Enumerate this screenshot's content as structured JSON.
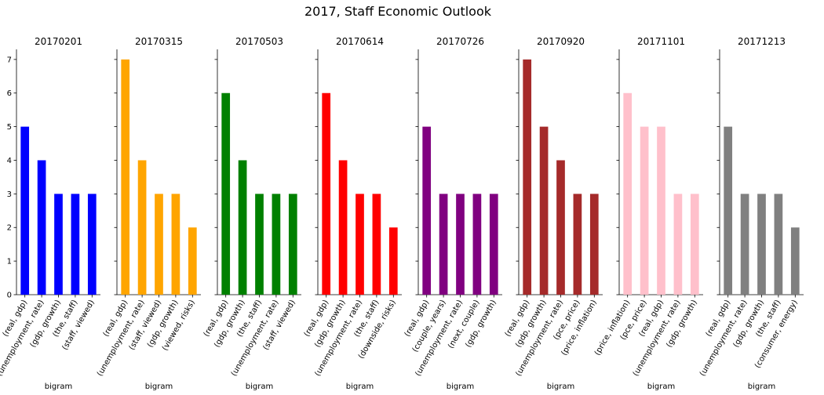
{
  "figure": {
    "title": "2017, Staff Economic Outlook"
  },
  "chart_data": [
    {
      "type": "bar",
      "title": "20170201",
      "xlabel": "bigram",
      "ylabel": "",
      "ylim": [
        0,
        7.3
      ],
      "color": "#0000ff",
      "categories": [
        "(real, gdp)",
        "(unemployment, rate)",
        "(gdp, growth)",
        "(the, staff)",
        "(staff, viewed)"
      ],
      "values": [
        5,
        4,
        3,
        3,
        3
      ]
    },
    {
      "type": "bar",
      "title": "20170315",
      "xlabel": "bigram",
      "ylabel": "",
      "ylim": [
        0,
        7.3
      ],
      "color": "#ffa500",
      "categories": [
        "(real, gdp)",
        "(unemployment, rate)",
        "(staff, viewed)",
        "(gdp, growth)",
        "(viewed, risks)"
      ],
      "values": [
        7,
        4,
        3,
        3,
        2
      ]
    },
    {
      "type": "bar",
      "title": "20170503",
      "xlabel": "bigram",
      "ylabel": "",
      "ylim": [
        0,
        7.3
      ],
      "color": "#008000",
      "categories": [
        "(real, gdp)",
        "(gdp, growth)",
        "(the, staff)",
        "(unemployment, rate)",
        "(staff, viewed)"
      ],
      "values": [
        6,
        4,
        3,
        3,
        3
      ]
    },
    {
      "type": "bar",
      "title": "20170614",
      "xlabel": "bigram",
      "ylabel": "",
      "ylim": [
        0,
        7.3
      ],
      "color": "#ff0000",
      "categories": [
        "(real, gdp)",
        "(gdp, growth)",
        "(unemployment, rate)",
        "(the, staff)",
        "(downside, risks)"
      ],
      "values": [
        6,
        4,
        3,
        3,
        2
      ]
    },
    {
      "type": "bar",
      "title": "20170726",
      "xlabel": "bigram",
      "ylabel": "",
      "ylim": [
        0,
        7.3
      ],
      "color": "#800080",
      "categories": [
        "(real, gdp)",
        "(couple, years)",
        "(unemployment, rate)",
        "(next, couple)",
        "(gdp, growth)"
      ],
      "values": [
        5,
        3,
        3,
        3,
        3
      ]
    },
    {
      "type": "bar",
      "title": "20170920",
      "xlabel": "bigram",
      "ylabel": "",
      "ylim": [
        0,
        7.3
      ],
      "color": "#a52a2a",
      "categories": [
        "(real, gdp)",
        "(gdp, growth)",
        "(unemployment, rate)",
        "(pce, price)",
        "(price, inflation)"
      ],
      "values": [
        7,
        5,
        4,
        3,
        3
      ]
    },
    {
      "type": "bar",
      "title": "20171101",
      "xlabel": "bigram",
      "ylabel": "",
      "ylim": [
        0,
        7.3
      ],
      "color": "#ffc0cb",
      "categories": [
        "(price, inflation)",
        "(pce, price)",
        "(real, gdp)",
        "(unemployment, rate)",
        "(gdp, growth)"
      ],
      "values": [
        6,
        5,
        5,
        3,
        3
      ]
    },
    {
      "type": "bar",
      "title": "20171213",
      "xlabel": "bigram",
      "ylabel": "",
      "ylim": [
        0,
        7.3
      ],
      "color": "#808080",
      "categories": [
        "(real, gdp)",
        "(unemployment, rate)",
        "(gdp, growth)",
        "(the, staff)",
        "(consumer, energy)"
      ],
      "values": [
        5,
        3,
        3,
        3,
        2
      ]
    }
  ],
  "y_ticks": [
    0,
    1,
    2,
    3,
    4,
    5,
    6,
    7
  ]
}
